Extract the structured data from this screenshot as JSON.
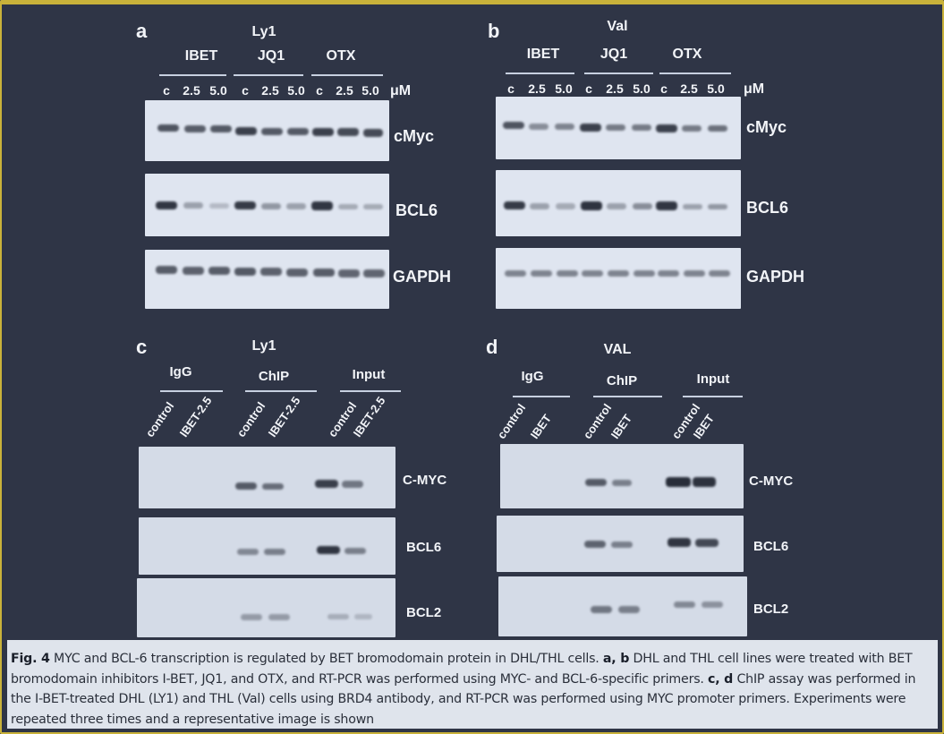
{
  "panel_a": {
    "label": "a",
    "cell_line": "Ly1",
    "groups": [
      "IBET",
      "JQ1",
      "OTX"
    ],
    "lanes": [
      "c",
      "2.5",
      "5.0",
      "c",
      "2.5",
      "5.0",
      "c",
      "2.5",
      "5.0"
    ],
    "unit": "μM",
    "gels": [
      "cMyc",
      "BCL6",
      "GAPDH"
    ]
  },
  "panel_b": {
    "label": "b",
    "cell_line": "Val",
    "groups": [
      "IBET",
      "JQ1",
      "OTX"
    ],
    "lanes": [
      "c",
      "2.5",
      "5.0",
      "c",
      "2.5",
      "5.0",
      "c",
      "2.5",
      "5.0"
    ],
    "unit": "μM",
    "gels": [
      "cMyc",
      "BCL6",
      "GAPDH"
    ]
  },
  "panel_c": {
    "label": "c",
    "cell_line": "Ly1",
    "groups": [
      "IgG",
      "ChIP",
      "Input"
    ],
    "lanes": [
      "control",
      "IBET-2.5",
      "control",
      "IBET-2.5",
      "control",
      "IBET-2.5"
    ],
    "gels": [
      "C-MYC",
      "BCL6",
      "BCL2"
    ]
  },
  "panel_d": {
    "label": "d",
    "cell_line": "VAL",
    "groups": [
      "IgG",
      "ChIP",
      "Input"
    ],
    "lanes": [
      "control",
      "IBET",
      "control",
      "IBET",
      "control",
      "IBET"
    ],
    "gels": [
      "C-MYC",
      "BCL6",
      "BCL2"
    ]
  },
  "caption": {
    "fig": "Fig. 4",
    "t1": " MYC and BCL-6 transcription is regulated by BET bromodomain protein in DHL/THL cells. ",
    "ab": "a, b",
    "t2": " DHL and THL cell lines were treated with BET bromodomain inhibitors I-BET, JQ1, and OTX, and RT-PCR was performed using MYC- and BCL-6-specific primers. ",
    "cd": "c, d",
    "t3": " ChIP assay was performed in the I-BET-treated DHL (LY1) and THL (Val) cells using BRD4 antibody, and RT-PCR was performed using MYC promoter primers. Experiments were repeated three times and a representative image is shown"
  }
}
